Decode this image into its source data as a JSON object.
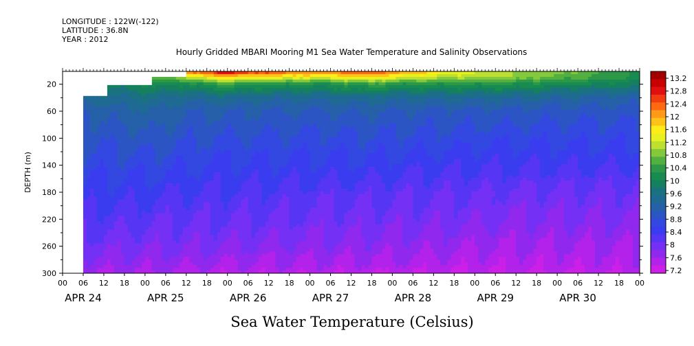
{
  "header": {
    "longitude": "LONGITUDE : 122W(-122)",
    "latitude": "LATITUDE : 36.8N",
    "year": "YEAR : 2012"
  },
  "chart_data": {
    "type": "heatmap",
    "title": "Hourly Gridded MBARI Mooring M1 Sea Water Temperature and Salinity Observations",
    "variable_label": "Sea Water Temperature (Celsius)",
    "ylabel": "DEPTH (m)",
    "y_ticks": [
      20,
      60,
      100,
      140,
      180,
      220,
      260,
      300
    ],
    "ylim": [
      300,
      1
    ],
    "y_inverted": true,
    "x_hour_ticks": [
      "00",
      "06",
      "12",
      "18",
      "00",
      "06",
      "12",
      "18",
      "00",
      "06",
      "12",
      "18",
      "00",
      "06",
      "12",
      "18",
      "00",
      "06",
      "12",
      "18",
      "00",
      "06",
      "12",
      "18",
      "00",
      "06",
      "12",
      "18",
      "00"
    ],
    "x_day_labels": [
      "APR 24",
      "APR 25",
      "APR 26",
      "APR 27",
      "APR 28",
      "APR 29",
      "APR 30"
    ],
    "xlim_hours": [
      0,
      168
    ],
    "colorbar": {
      "levels": [
        "13.2",
        "12.8",
        "12.4",
        "12",
        "11.6",
        "11.2",
        "10.8",
        "10.4",
        "10",
        "9.6",
        "9.2",
        "8.8",
        "8.4",
        "8",
        "7.6",
        "7.2"
      ],
      "colors": [
        "#a00000",
        "#c80000",
        "#e01010",
        "#f03c10",
        "#ff6a10",
        "#ff9a18",
        "#ffc218",
        "#ffec18",
        "#e8f020",
        "#bde030",
        "#84c83c",
        "#52b040",
        "#2c9848",
        "#188c50",
        "#15805e",
        "#1a7280",
        "#1f6a92",
        "#2560a8",
        "#2c55c4",
        "#3248e0",
        "#3a3cf0",
        "#5636f4",
        "#7430f4",
        "#9028ee",
        "#b222ea",
        "#cc20e8"
      ]
    },
    "profiles": [
      {
        "hour": 0,
        "values": {}
      },
      {
        "hour": 6.5,
        "depth_top": 38,
        "values": {
          "38": 9.4,
          "60": 9.0,
          "100": 8.8,
          "140": 8.6,
          "180": 8.4,
          "220": 8.1,
          "260": 7.85,
          "300": 7.5
        }
      },
      {
        "hour": 13,
        "depth_top": 20,
        "values": {
          "20": 9.8,
          "40": 9.4,
          "60": 9.05,
          "100": 8.8,
          "140": 8.6,
          "180": 8.35,
          "220": 8.1,
          "260": 7.85,
          "300": 7.5
        }
      },
      {
        "hour": 26,
        "depth_top": 8,
        "values": {
          "8": 10.6,
          "20": 10.0,
          "40": 9.5,
          "60": 9.2,
          "100": 8.9,
          "140": 8.6,
          "180": 8.3,
          "220": 8.05,
          "260": 7.8,
          "300": 7.45
        }
      },
      {
        "hour": 36,
        "depth_top": 1,
        "values": {
          "1": 12.2,
          "10": 11.0,
          "20": 10.0,
          "40": 9.3,
          "60": 9.0,
          "100": 8.75,
          "140": 8.5,
          "180": 8.25,
          "220": 8.0,
          "260": 7.8,
          "300": 7.4
        }
      },
      {
        "hour": 46,
        "depth_top": 1,
        "values": {
          "1": 13.0,
          "10": 11.6,
          "20": 10.4,
          "40": 9.4,
          "60": 9.0,
          "100": 8.7,
          "140": 8.45,
          "180": 8.2,
          "220": 8.0,
          "260": 7.75,
          "300": 7.35
        }
      },
      {
        "hour": 60,
        "depth_top": 1,
        "values": {
          "1": 12.6,
          "10": 11.4,
          "20": 10.2,
          "40": 9.3,
          "60": 8.95,
          "100": 8.7,
          "140": 8.45,
          "180": 8.15,
          "220": 7.95,
          "260": 7.7,
          "300": 7.35
        }
      },
      {
        "hour": 75,
        "depth_top": 1,
        "values": {
          "1": 12.2,
          "10": 11.2,
          "20": 10.1,
          "40": 9.3,
          "60": 8.95,
          "100": 8.65,
          "140": 8.4,
          "180": 8.1,
          "220": 7.9,
          "260": 7.7,
          "300": 7.3
        }
      },
      {
        "hour": 88,
        "depth_top": 1,
        "values": {
          "1": 12.6,
          "10": 11.6,
          "20": 10.4,
          "40": 9.4,
          "60": 9.0,
          "100": 8.7,
          "140": 8.4,
          "180": 8.1,
          "220": 7.9,
          "260": 7.65,
          "300": 7.3
        }
      },
      {
        "hour": 100,
        "depth_top": 1,
        "values": {
          "1": 12.0,
          "10": 11.2,
          "20": 10.2,
          "40": 9.3,
          "60": 8.95,
          "100": 8.65,
          "140": 8.35,
          "180": 8.05,
          "220": 7.85,
          "260": 7.6,
          "300": 7.3
        }
      },
      {
        "hour": 115,
        "depth_top": 1,
        "values": {
          "1": 11.4,
          "10": 11.0,
          "20": 10.2,
          "40": 9.3,
          "60": 8.9,
          "100": 8.6,
          "140": 8.3,
          "180": 8.0,
          "220": 7.8,
          "260": 7.55,
          "300": 7.25
        }
      },
      {
        "hour": 130,
        "depth_top": 1,
        "values": {
          "1": 11.0,
          "10": 10.9,
          "20": 10.2,
          "40": 9.3,
          "60": 8.9,
          "100": 8.55,
          "140": 8.25,
          "180": 7.95,
          "220": 7.75,
          "260": 7.5,
          "300": 7.25
        }
      },
      {
        "hour": 145,
        "depth_top": 1,
        "values": {
          "1": 10.8,
          "10": 10.6,
          "20": 10.0,
          "40": 9.2,
          "60": 8.85,
          "100": 8.55,
          "140": 8.25,
          "180": 7.95,
          "220": 7.75,
          "260": 7.5,
          "300": 7.25
        }
      },
      {
        "hour": 168,
        "depth_top": 1,
        "values": {
          "1": 10.2,
          "10": 10.1,
          "20": 9.8,
          "40": 9.1,
          "60": 8.85,
          "100": 8.55,
          "140": 8.25,
          "180": 7.95,
          "220": 7.75,
          "260": 7.5,
          "300": 7.3
        }
      }
    ]
  }
}
